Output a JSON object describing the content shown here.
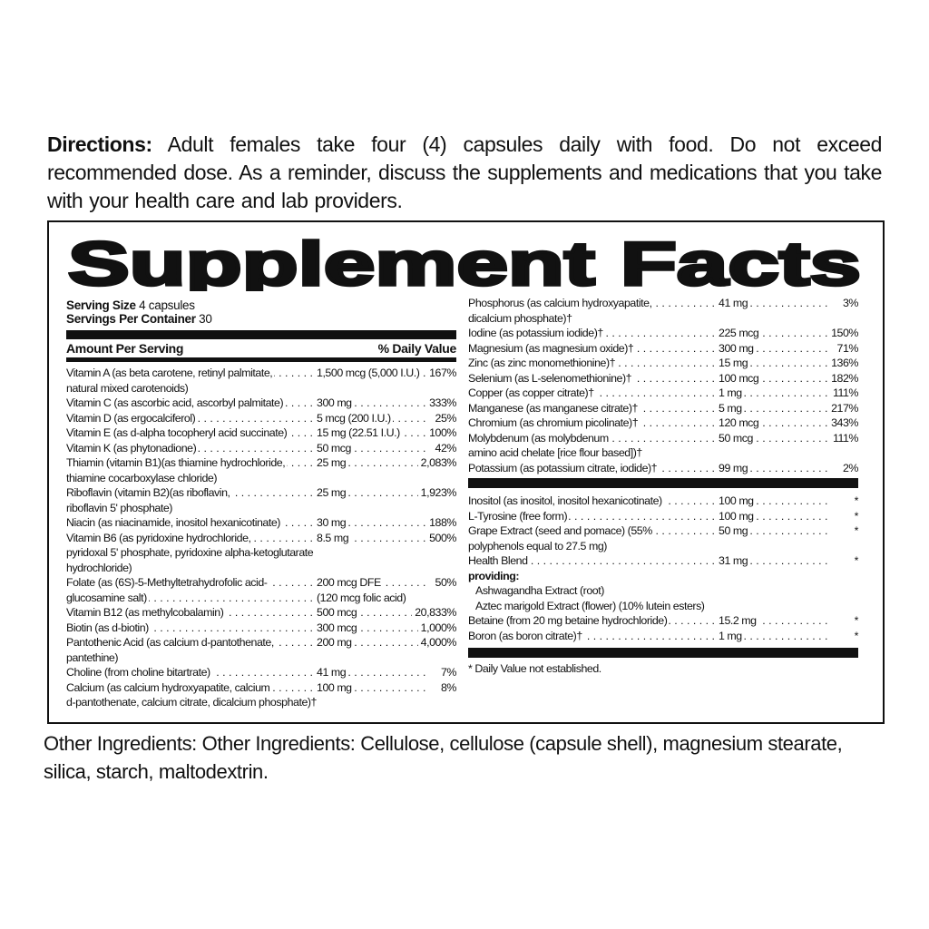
{
  "directions": {
    "label": "Directions:",
    "text": " Adult females  take four (4) capsules daily with food. Do not exceed recommended dose. As a reminder, discuss the supplements and medications that you take with your health care and lab  providers."
  },
  "facts": {
    "title": "Supplement Facts",
    "serving_size_label": "Serving Size",
    "serving_size": " 4 capsules",
    "servings_label": "Servings Per Container",
    "servings": " 30",
    "amount_header": "Amount Per Serving",
    "dv_header": "% Daily Value",
    "left_rows": [
      {
        "name": "Vitamin A (as beta carotene, retinyl palmitate,",
        "amount": "1,500 mcg (5,000 I.U.)",
        "dv": "167%"
      },
      {
        "cont": "natural mixed carotenoids)"
      },
      {
        "name": "Vitamin C (as ascorbic acid, ascorbyl palmitate)",
        "amount": "300 mg",
        "dv": "333%"
      },
      {
        "name": "Vitamin D (as ergocalciferol)",
        "amount": "5 mcg (200 I.U.)",
        "dv": "25%"
      },
      {
        "name": "Vitamin E (as d-alpha tocopheryl acid succinate)",
        "amount": "15 mg (22.51 I.U.)",
        "dv": "100%"
      },
      {
        "name": "Vitamin K (as phytonadione)",
        "amount": "50 mcg",
        "dv": "42%"
      },
      {
        "name": "Thiamin (vitamin B1)(as thiamine hydrochloride,",
        "amount": "25 mg",
        "dv": "2,083%"
      },
      {
        "cont": "thiamine cocarboxylase chloride)"
      },
      {
        "name": "Riboflavin (vitamin B2)(as riboflavin,",
        "amount": "25 mg",
        "dv": "1,923%"
      },
      {
        "cont": "riboflavin 5' phosphate)"
      },
      {
        "name": "Niacin (as niacinamide, inositol hexanicotinate)",
        "amount": "30 mg",
        "dv": "188%"
      },
      {
        "name": "Vitamin B6 (as pyridoxine hydrochloride,",
        "amount": "8.5 mg",
        "dv": "500%"
      },
      {
        "cont": "pyridoxal 5' phosphate, pyridoxine alpha-ketoglutarate"
      },
      {
        "cont": "hydrochloride)"
      },
      {
        "name": "Folate (as (6S)-5-Methyltetrahydrofolic acid-",
        "amount": "200 mcg DFE",
        "dv": "50%"
      },
      {
        "name": "glucosamine salt)",
        "amount": "(120 mcg folic acid)",
        "dv": "",
        "noamtlead": true
      },
      {
        "name": "Vitamin B12 (as methylcobalamin)",
        "amount": "500 mcg",
        "dv": "20,833%"
      },
      {
        "name": "Biotin (as d-biotin)",
        "amount": "300 mcg",
        "dv": "1,000%"
      },
      {
        "name": "Pantothenic Acid (as calcium d-pantothenate,",
        "amount": "200 mg",
        "dv": "4,000%"
      },
      {
        "cont": "pantethine)"
      },
      {
        "name": "Choline (from choline bitartrate)",
        "amount": "41 mg",
        "dv": "7%"
      },
      {
        "name": "Calcium (as calcium hydroxyapatite, calcium",
        "amount": "100 mg",
        "dv": "8%"
      },
      {
        "cont": "d-pantothenate, calcium citrate, dicalcium phosphate)†"
      }
    ],
    "right_rows_1": [
      {
        "name": "Phosphorus (as calcium hydroxyapatite,",
        "amount": "41 mg",
        "dv": "3%"
      },
      {
        "cont": "dicalcium phosphate)†"
      },
      {
        "name": "Iodine (as potassium iodide)†",
        "amount": "225 mcg",
        "dv": "150%"
      },
      {
        "name": "Magnesium (as magnesium oxide)†",
        "amount": "300 mg",
        "dv": "71%"
      },
      {
        "name": "Zinc (as zinc monomethionine)†",
        "amount": "15 mg",
        "dv": "136%"
      },
      {
        "name": "Selenium (as L-selenomethionine)†",
        "amount": "100 mcg",
        "dv": "182%"
      },
      {
        "name": "Copper (as copper citrate)†",
        "amount": "1 mg",
        "dv": "111%"
      },
      {
        "name": "Manganese (as manganese citrate)†",
        "amount": "5 mg",
        "dv": "217%"
      },
      {
        "name": "Chromium (as chromium picolinate)†",
        "amount": "120 mcg",
        "dv": "343%"
      },
      {
        "name": "Molybdenum (as molybdenum",
        "amount": "50 mcg",
        "dv": "111%"
      },
      {
        "cont": "amino acid chelate [rice flour based])†"
      },
      {
        "name": "Potassium (as potassium citrate, iodide)†",
        "amount": "99 mg",
        "dv": "2%"
      }
    ],
    "right_rows_2": [
      {
        "name": "Inositol (as inositol, inositol hexanicotinate)",
        "amount": "100 mg",
        "dv": "*"
      },
      {
        "name": "L-Tyrosine (free form)",
        "amount": "100 mg",
        "dv": "*"
      },
      {
        "name": "Grape Extract (seed and pomace) (55%",
        "amount": "50 mg",
        "dv": "*"
      },
      {
        "cont": "polyphenols equal to 27.5 mg)"
      },
      {
        "name": "Health Blend",
        "amount": "31 mg",
        "dv": "*"
      },
      {
        "cont": "providing:",
        "bold": true
      },
      {
        "cont": "Ashwagandha Extract (root)",
        "indent": true
      },
      {
        "cont": "Aztec marigold Extract (flower) (10% lutein esters)",
        "indent": true
      },
      {
        "name": "Betaine (from 20 mg betaine hydrochloride)",
        "amount": "15.2 mg",
        "dv": "*"
      },
      {
        "name": "Boron (as boron citrate)†",
        "amount": "1 mg",
        "dv": "*"
      }
    ],
    "footnote": "* Daily Value not established."
  },
  "other_ingredients": "Other Ingredients: Other Ingredients:  Cellulose, cellulose (capsule shell), magnesium stearate, silica, starch, maltodextrin."
}
